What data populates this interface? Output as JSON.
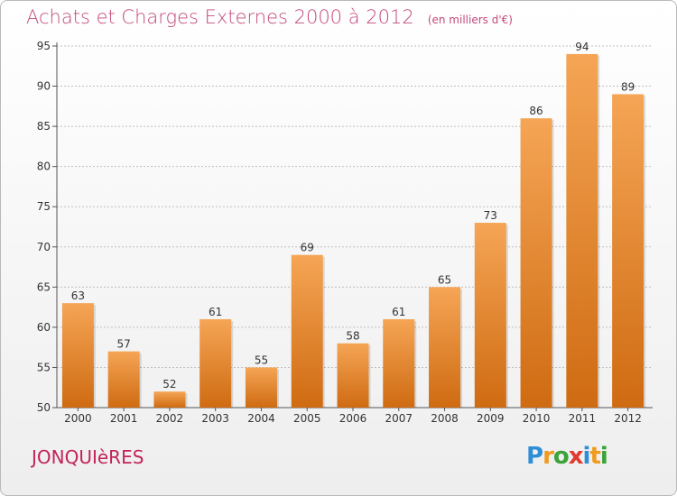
{
  "header": {
    "title": "Achats et Charges Externes 2000 à 2012",
    "unit": "(en milliers d'€)"
  },
  "footer": {
    "commune": "JONQUIèRES",
    "logo_letters": [
      {
        "ch": "P",
        "color": "#2f8fd6"
      },
      {
        "ch": "r",
        "color": "#f29a1f"
      },
      {
        "ch": "o",
        "color": "#3aa33a"
      },
      {
        "ch": "x",
        "color": "#e03a2f"
      },
      {
        "ch": "i",
        "color": "#2f8fd6"
      },
      {
        "ch": "t",
        "color": "#f29a1f"
      },
      {
        "ch": "i",
        "color": "#3aa33a"
      }
    ]
  },
  "colors": {
    "bar_top": "#f5a555",
    "bar_bottom": "#cf6b12",
    "grid": "#bfbfbf",
    "title": "#c24a7c"
  },
  "chart_data": {
    "type": "bar",
    "title": "Achats et Charges Externes 2000 à 2012",
    "subtitle": "(en milliers d'€)",
    "xlabel": "",
    "ylabel": "",
    "categories": [
      "2000",
      "2001",
      "2002",
      "2003",
      "2004",
      "2005",
      "2006",
      "2007",
      "2008",
      "2009",
      "2010",
      "2011",
      "2012"
    ],
    "values": [
      63,
      57,
      52,
      61,
      55,
      69,
      58,
      61,
      65,
      73,
      86,
      94,
      89
    ],
    "ylim": [
      50,
      95
    ],
    "yticks": [
      50,
      55,
      60,
      65,
      70,
      75,
      80,
      85,
      90,
      95
    ],
    "grid": true,
    "data_labels": true
  }
}
